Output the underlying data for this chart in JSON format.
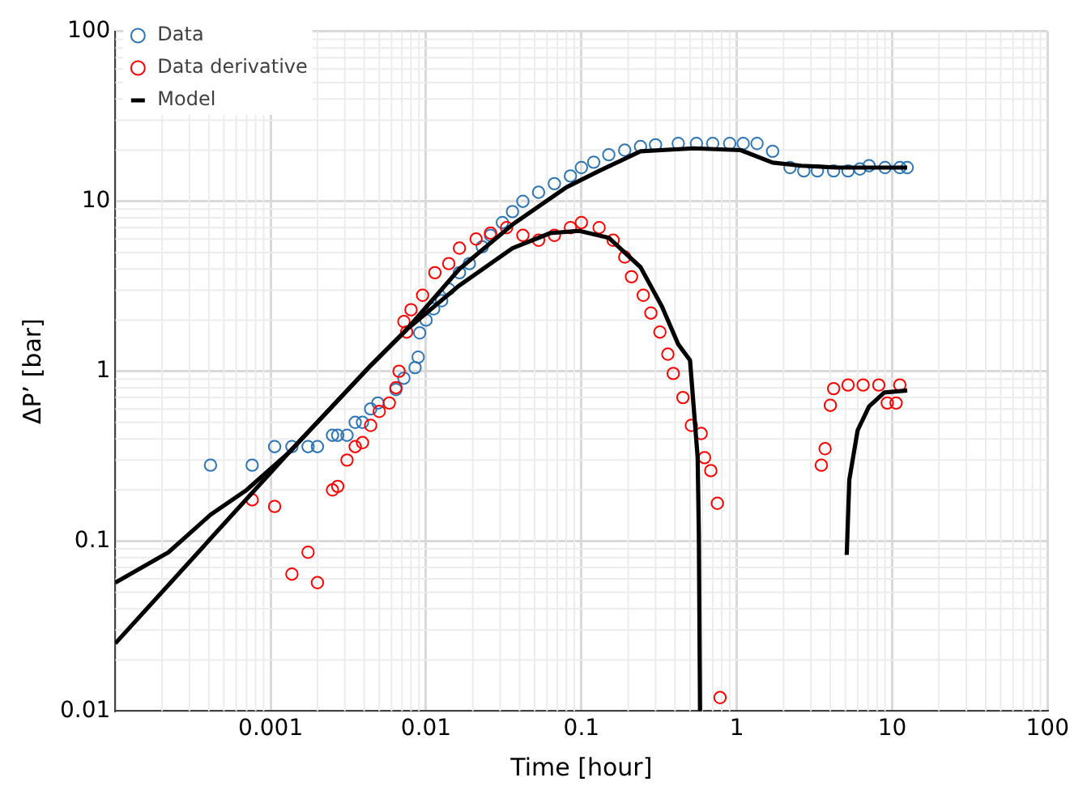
{
  "chart_data": {
    "type": "scatter",
    "xlabel": "Time [hour]",
    "ylabel": "ΔP’ [bar]",
    "log": "xy",
    "grid": true,
    "legend": "top left",
    "xlim": [
      0.0001,
      100
    ],
    "ylim": [
      0.01,
      100
    ],
    "xticks": [
      {
        "value": 0.0001,
        "label": null
      },
      0.001,
      0.01,
      0.1,
      1,
      10,
      100
    ],
    "yticks": [
      0.01,
      0.1,
      1,
      10,
      100
    ],
    "series": [
      {
        "name": "Data",
        "type": "scatter",
        "marker": "circle",
        "color": "#2e75b6",
        "x": [
          0.00041,
          0.00076,
          0.00106,
          0.00137,
          0.00174,
          0.002,
          0.0025,
          0.0027,
          0.0031,
          0.0035,
          0.0039,
          0.0044,
          0.0049,
          0.0064,
          0.0072,
          0.0085,
          0.0089,
          0.0091,
          0.01,
          0.0112,
          0.0126,
          0.014,
          0.0164,
          0.019,
          0.023,
          0.026,
          0.031,
          0.036,
          0.042,
          0.053,
          0.067,
          0.085,
          0.1,
          0.12,
          0.15,
          0.19,
          0.24,
          0.3,
          0.42,
          0.55,
          0.7,
          0.9,
          1.1,
          1.35,
          1.7,
          2.2,
          2.7,
          3.3,
          4.2,
          5.2,
          6.2,
          7.1,
          9,
          11.2,
          12.5
        ],
        "values": [
          0.28,
          0.28,
          0.36,
          0.36,
          0.36,
          0.36,
          0.42,
          0.42,
          0.42,
          0.5,
          0.5,
          0.6,
          0.65,
          0.78,
          0.91,
          1.05,
          1.21,
          1.68,
          2,
          2.33,
          2.6,
          3.04,
          3.8,
          4.3,
          5.4,
          6.3,
          7.5,
          8.7,
          10,
          11.3,
          12.7,
          14.1,
          15.8,
          17,
          18.8,
          20,
          21,
          21.5,
          21.9,
          21.9,
          21.9,
          21.9,
          21.9,
          21.9,
          19.7,
          15.8,
          15.1,
          15.1,
          15.1,
          15.1,
          15.5,
          16.2,
          15.8,
          15.8,
          15.8
        ]
      },
      {
        "name": "Data derivative",
        "type": "scatter",
        "marker": "circle",
        "color": "#ff0000",
        "x": [
          0.00076,
          0.00106,
          0.00137,
          0.00174,
          0.002,
          0.0025,
          0.0027,
          0.0031,
          0.0035,
          0.0039,
          0.0044,
          0.005,
          0.0058,
          0.0064,
          0.0067,
          0.0072,
          0.0075,
          0.008,
          0.0095,
          0.0114,
          0.014,
          0.0164,
          0.021,
          0.026,
          0.033,
          0.042,
          0.053,
          0.067,
          0.085,
          0.1,
          0.13,
          0.16,
          0.19,
          0.21,
          0.25,
          0.28,
          0.32,
          0.36,
          0.39,
          0.45,
          0.51,
          0.59,
          0.62,
          0.68,
          0.75,
          0.78,
          3.5,
          3.7,
          4,
          4.2,
          5.2,
          6.5,
          8.2,
          9.3,
          10.6,
          11.2
        ],
        "values": [
          0.175,
          0.16,
          0.064,
          0.086,
          0.057,
          0.2,
          0.21,
          0.3,
          0.36,
          0.38,
          0.48,
          0.58,
          0.65,
          0.8,
          1,
          1.96,
          1.7,
          2.3,
          2.8,
          3.8,
          4.3,
          5.3,
          6,
          6.5,
          7,
          6.3,
          5.9,
          6.3,
          7,
          7.5,
          7,
          5.9,
          4.7,
          3.6,
          2.8,
          2.2,
          1.7,
          1.26,
          0.97,
          0.7,
          0.48,
          0.43,
          0.31,
          0.26,
          0.167,
          0.012,
          0.28,
          0.35,
          0.63,
          0.79,
          0.83,
          0.83,
          0.83,
          0.65,
          0.65,
          0.83
        ]
      },
      {
        "name": "Model",
        "type": "line",
        "marker": "none",
        "line_style": "solid",
        "color": "#000000",
        "x": [
          0.0001,
          0.00022,
          0.00041,
          0.0007,
          0.0013,
          0.0044,
          0.0075,
          0.0164,
          0.036,
          0.08,
          0.13,
          0.24,
          0.53,
          1.06,
          1.7,
          2.6,
          4.4,
          12.5
        ],
        "values": [
          0.057,
          0.086,
          0.143,
          0.2,
          0.33,
          1.08,
          1.76,
          4,
          7.3,
          12.1,
          15.1,
          19.7,
          20.5,
          20,
          16.9,
          16.2,
          15.8,
          15.8
        ]
      },
      {
        "type": "line",
        "marker": "none",
        "line_style": "solid",
        "color": "#000000",
        "x": [
          0.0001,
          0.0013,
          0.0044,
          0.0075,
          0.0164,
          0.036,
          0.063,
          0.097,
          0.15,
          0.24,
          0.33,
          0.42,
          0.5,
          0.56,
          0.57,
          0.58
        ],
        "values": [
          0.025,
          0.33,
          1.08,
          1.76,
          3.2,
          5.3,
          6.5,
          6.7,
          6.1,
          4.1,
          2.4,
          1.44,
          1.16,
          0.31,
          0.11,
          0.01
        ]
      },
      {
        "type": "line",
        "marker": "none",
        "line_style": "solid",
        "color": "#000000",
        "x": [
          5.1,
          5.3,
          6,
          7.1,
          8.9,
          12.5
        ],
        "values": [
          0.083,
          0.23,
          0.45,
          0.62,
          0.75,
          0.77
        ]
      }
    ]
  }
}
